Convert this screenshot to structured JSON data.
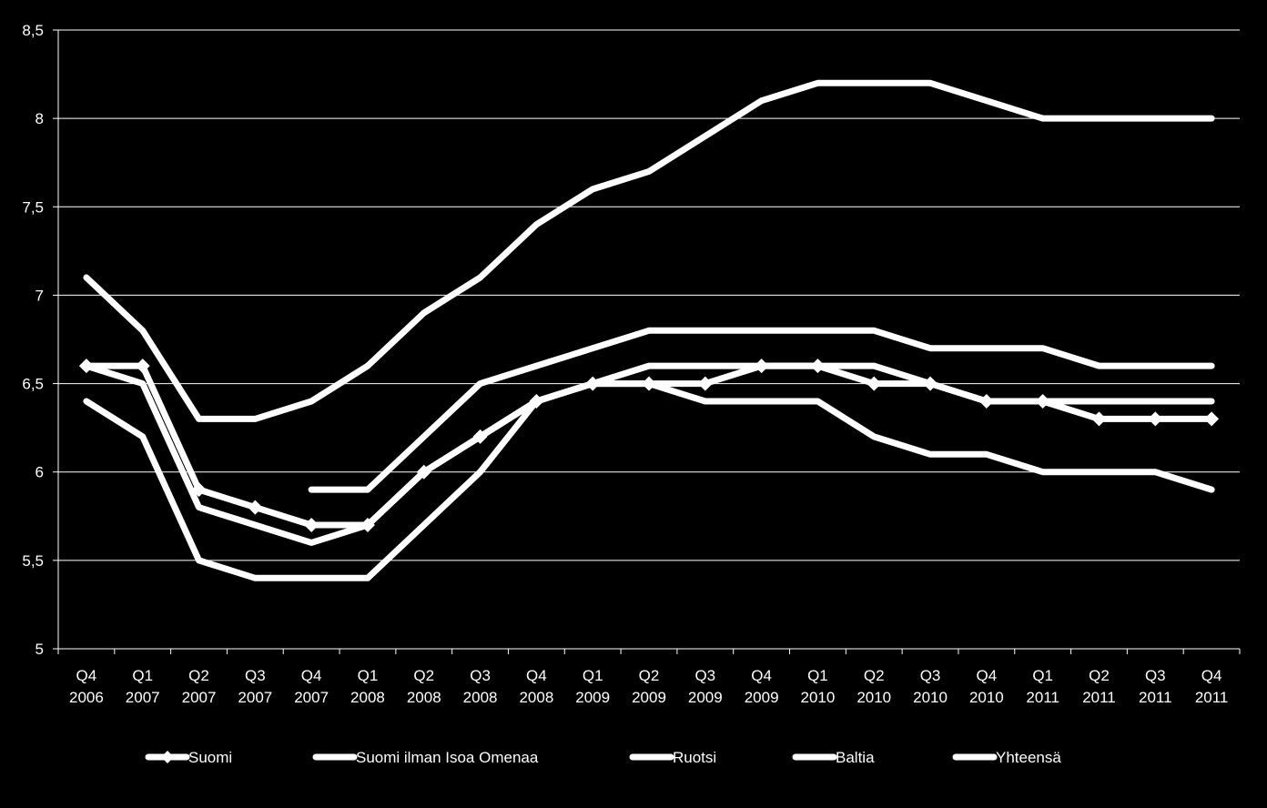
{
  "chart_data": {
    "type": "line",
    "ylim": [
      5,
      8.5
    ],
    "yticks": [
      "5",
      "5,5",
      "6",
      "6,5",
      "7",
      "7,5",
      "8",
      "8,5"
    ],
    "categories": [
      {
        "q": "Q4",
        "y": "2006"
      },
      {
        "q": "Q1",
        "y": "2007"
      },
      {
        "q": "Q2",
        "y": "2007"
      },
      {
        "q": "Q3",
        "y": "2007"
      },
      {
        "q": "Q4",
        "y": "2007"
      },
      {
        "q": "Q1",
        "y": "2008"
      },
      {
        "q": "Q2",
        "y": "2008"
      },
      {
        "q": "Q3",
        "y": "2008"
      },
      {
        "q": "Q4",
        "y": "2008"
      },
      {
        "q": "Q1",
        "y": "2009"
      },
      {
        "q": "Q2",
        "y": "2009"
      },
      {
        "q": "Q3",
        "y": "2009"
      },
      {
        "q": "Q4",
        "y": "2009"
      },
      {
        "q": "Q1",
        "y": "2010"
      },
      {
        "q": "Q2",
        "y": "2010"
      },
      {
        "q": "Q3",
        "y": "2010"
      },
      {
        "q": "Q4",
        "y": "2010"
      },
      {
        "q": "Q1",
        "y": "2011"
      },
      {
        "q": "Q2",
        "y": "2011"
      },
      {
        "q": "Q3",
        "y": "2011"
      },
      {
        "q": "Q4",
        "y": "2011"
      }
    ],
    "series": [
      {
        "name": "Suomi",
        "marker": "diamond",
        "values": [
          6.6,
          6.6,
          5.9,
          5.8,
          5.7,
          5.7,
          6.0,
          6.2,
          6.4,
          6.5,
          6.5,
          6.5,
          6.6,
          6.6,
          6.5,
          6.5,
          6.4,
          6.4,
          6.3,
          6.3,
          6.3
        ]
      },
      {
        "name": "Suomi ilman Isoa Omenaa",
        "marker": "none",
        "values": [
          null,
          null,
          null,
          null,
          5.9,
          5.9,
          6.2,
          6.5,
          6.6,
          6.7,
          6.8,
          6.8,
          6.8,
          6.8,
          6.8,
          6.7,
          6.7,
          6.7,
          6.6,
          6.6,
          6.6
        ]
      },
      {
        "name": "Ruotsi",
        "marker": "none",
        "values": [
          6.4,
          6.2,
          5.5,
          5.4,
          5.4,
          5.4,
          5.7,
          6.0,
          6.4,
          6.5,
          6.5,
          6.4,
          6.4,
          6.4,
          6.2,
          6.1,
          6.1,
          6.0,
          6.0,
          6.0,
          5.9
        ]
      },
      {
        "name": "Baltia",
        "marker": "none",
        "values": [
          7.1,
          6.8,
          6.3,
          6.3,
          6.4,
          6.6,
          6.9,
          7.1,
          7.4,
          7.6,
          7.7,
          7.9,
          8.1,
          8.2,
          8.2,
          8.2,
          8.1,
          8.0,
          8.0,
          8.0,
          8.0
        ]
      },
      {
        "name": "Yhteensä",
        "marker": "none",
        "values": [
          6.6,
          6.5,
          5.8,
          5.7,
          5.6,
          5.7,
          6.0,
          6.2,
          6.4,
          6.5,
          6.6,
          6.6,
          6.6,
          6.6,
          6.6,
          6.5,
          6.4,
          6.4,
          6.4,
          6.4,
          6.4
        ]
      }
    ],
    "legend_position": "bottom",
    "grid": true,
    "colors": {
      "background": "#000000",
      "foreground": "#ffffff"
    }
  }
}
